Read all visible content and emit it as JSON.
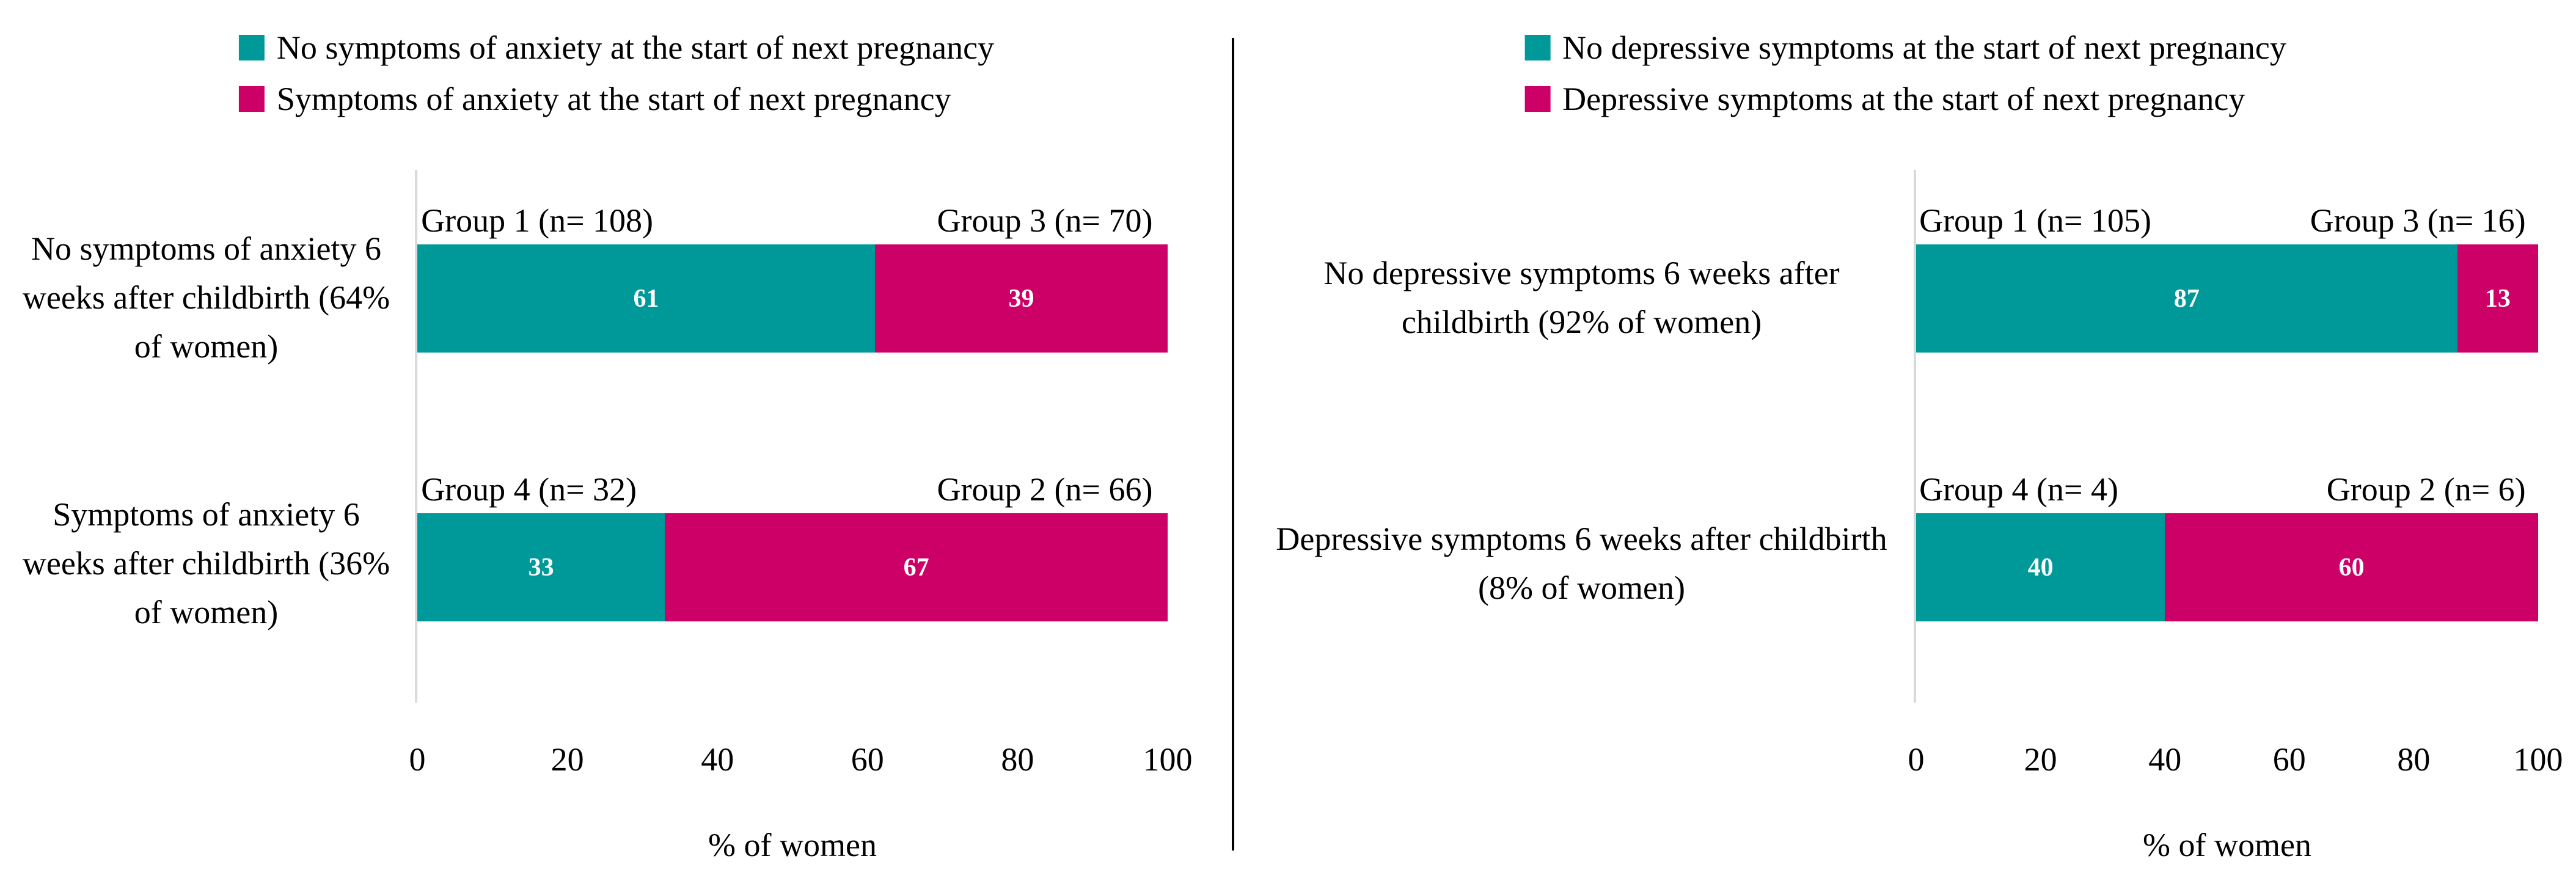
{
  "colors": {
    "teal": "#009999",
    "magenta": "#CC0066",
    "axis_line": "#D9D9D9",
    "divider": "#000000",
    "value_label": "#FFFFFF",
    "text": "#000000",
    "background": "#FFFFFF"
  },
  "chart_data": [
    {
      "type": "bar",
      "orientation": "horizontal_stacked",
      "title": "",
      "xlabel": "% of women",
      "xlim": [
        0,
        100
      ],
      "x_ticks": [
        "0",
        "20",
        "40",
        "60",
        "80",
        "100"
      ],
      "grid": false,
      "legend_position": "top",
      "legend": [
        {
          "label": "No symptoms of anxiety at the start of next pregnancy",
          "color": "#009999"
        },
        {
          "label": "Symptoms of anxiety at the start of next pregnancy",
          "color": "#CC0066"
        }
      ],
      "rows": [
        {
          "category": "No symptoms of anxiety 6 weeks after childbirth (64% of women)",
          "segments": [
            {
              "group_label": "Group 1 (n= 108)",
              "value": 61,
              "color": "#009999"
            },
            {
              "group_label": "Group 3 (n= 70)",
              "value": 39,
              "color": "#CC0066"
            }
          ]
        },
        {
          "category": "Symptoms of anxiety 6 weeks after childbirth (36% of women)",
          "segments": [
            {
              "group_label": "Group 4 (n= 32)",
              "value": 33,
              "color": "#009999"
            },
            {
              "group_label": "Group 2 (n= 66)",
              "value": 67,
              "color": "#CC0066"
            }
          ]
        }
      ]
    },
    {
      "type": "bar",
      "orientation": "horizontal_stacked",
      "title": "",
      "xlabel": "% of women",
      "xlim": [
        0,
        100
      ],
      "x_ticks": [
        "0",
        "20",
        "40",
        "60",
        "80",
        "100"
      ],
      "grid": false,
      "legend_position": "top",
      "legend": [
        {
          "label": "No depressive symptoms at the start of next pregnancy",
          "color": "#009999"
        },
        {
          "label": "Depressive symptoms at the start of next pregnancy",
          "color": "#CC0066"
        }
      ],
      "rows": [
        {
          "category": "No depressive symptoms 6 weeks after childbirth (92% of women)",
          "segments": [
            {
              "group_label": "Group 1 (n= 105)",
              "value": 87,
              "color": "#009999"
            },
            {
              "group_label": "Group 3 (n= 16)",
              "value": 13,
              "color": "#CC0066"
            }
          ]
        },
        {
          "category": "Depressive symptoms 6 weeks after childbirth (8% of women)",
          "segments": [
            {
              "group_label": "Group 4 (n= 4)",
              "value": 40,
              "color": "#009999"
            },
            {
              "group_label": "Group 2 (n= 6)",
              "value": 60,
              "color": "#CC0066"
            }
          ]
        }
      ]
    }
  ]
}
